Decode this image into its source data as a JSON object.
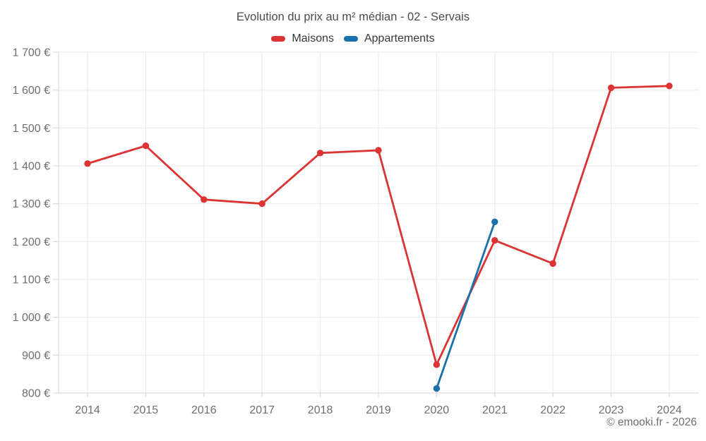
{
  "header": {
    "title": "Evolution du prix au m² médian - 02 - Servais"
  },
  "footer": {
    "copyright": "© emooki.fr - 2026"
  },
  "colors": {
    "maisons_red": "#dc3333",
    "appartements_blue": "#1970ab",
    "gridline": "#e9e9e9",
    "axis": "#d4d4d4",
    "tick_label": "#6f6f6f",
    "title_text": "#4c4c4c"
  },
  "chart_data": {
    "type": "line",
    "title": "Evolution du prix au m² médian - 02 - Servais",
    "xlabel": "",
    "ylabel": "",
    "x": [
      2014,
      2015,
      2016,
      2017,
      2018,
      2019,
      2020,
      2021,
      2022,
      2023,
      2024
    ],
    "x_tick_labels": [
      "2014",
      "2015",
      "2016",
      "2017",
      "2018",
      "2019",
      "2020",
      "2021",
      "2022",
      "2023",
      "2024"
    ],
    "ylim": [
      800,
      1700
    ],
    "y_ticks": [
      800,
      900,
      1000,
      1100,
      1200,
      1300,
      1400,
      1500,
      1600,
      1700
    ],
    "y_tick_labels": [
      "800 €",
      "900 €",
      "1 000 €",
      "1 100 €",
      "1 200 €",
      "1 300 €",
      "1 400 €",
      "1 500 €",
      "1 600 €",
      "1 700 €"
    ],
    "grid": true,
    "legend_position": "top",
    "currency_suffix": " €",
    "series": [
      {
        "name": "Maisons",
        "color": "#dc3333",
        "values": [
          1406,
          1453,
          1311,
          1300,
          1434,
          1441,
          875,
          1203,
          1142,
          1606,
          1611
        ]
      },
      {
        "name": "Appartements",
        "color": "#1970ab",
        "values": [
          null,
          null,
          null,
          null,
          null,
          null,
          812,
          1252,
          null,
          null,
          null
        ]
      }
    ]
  }
}
